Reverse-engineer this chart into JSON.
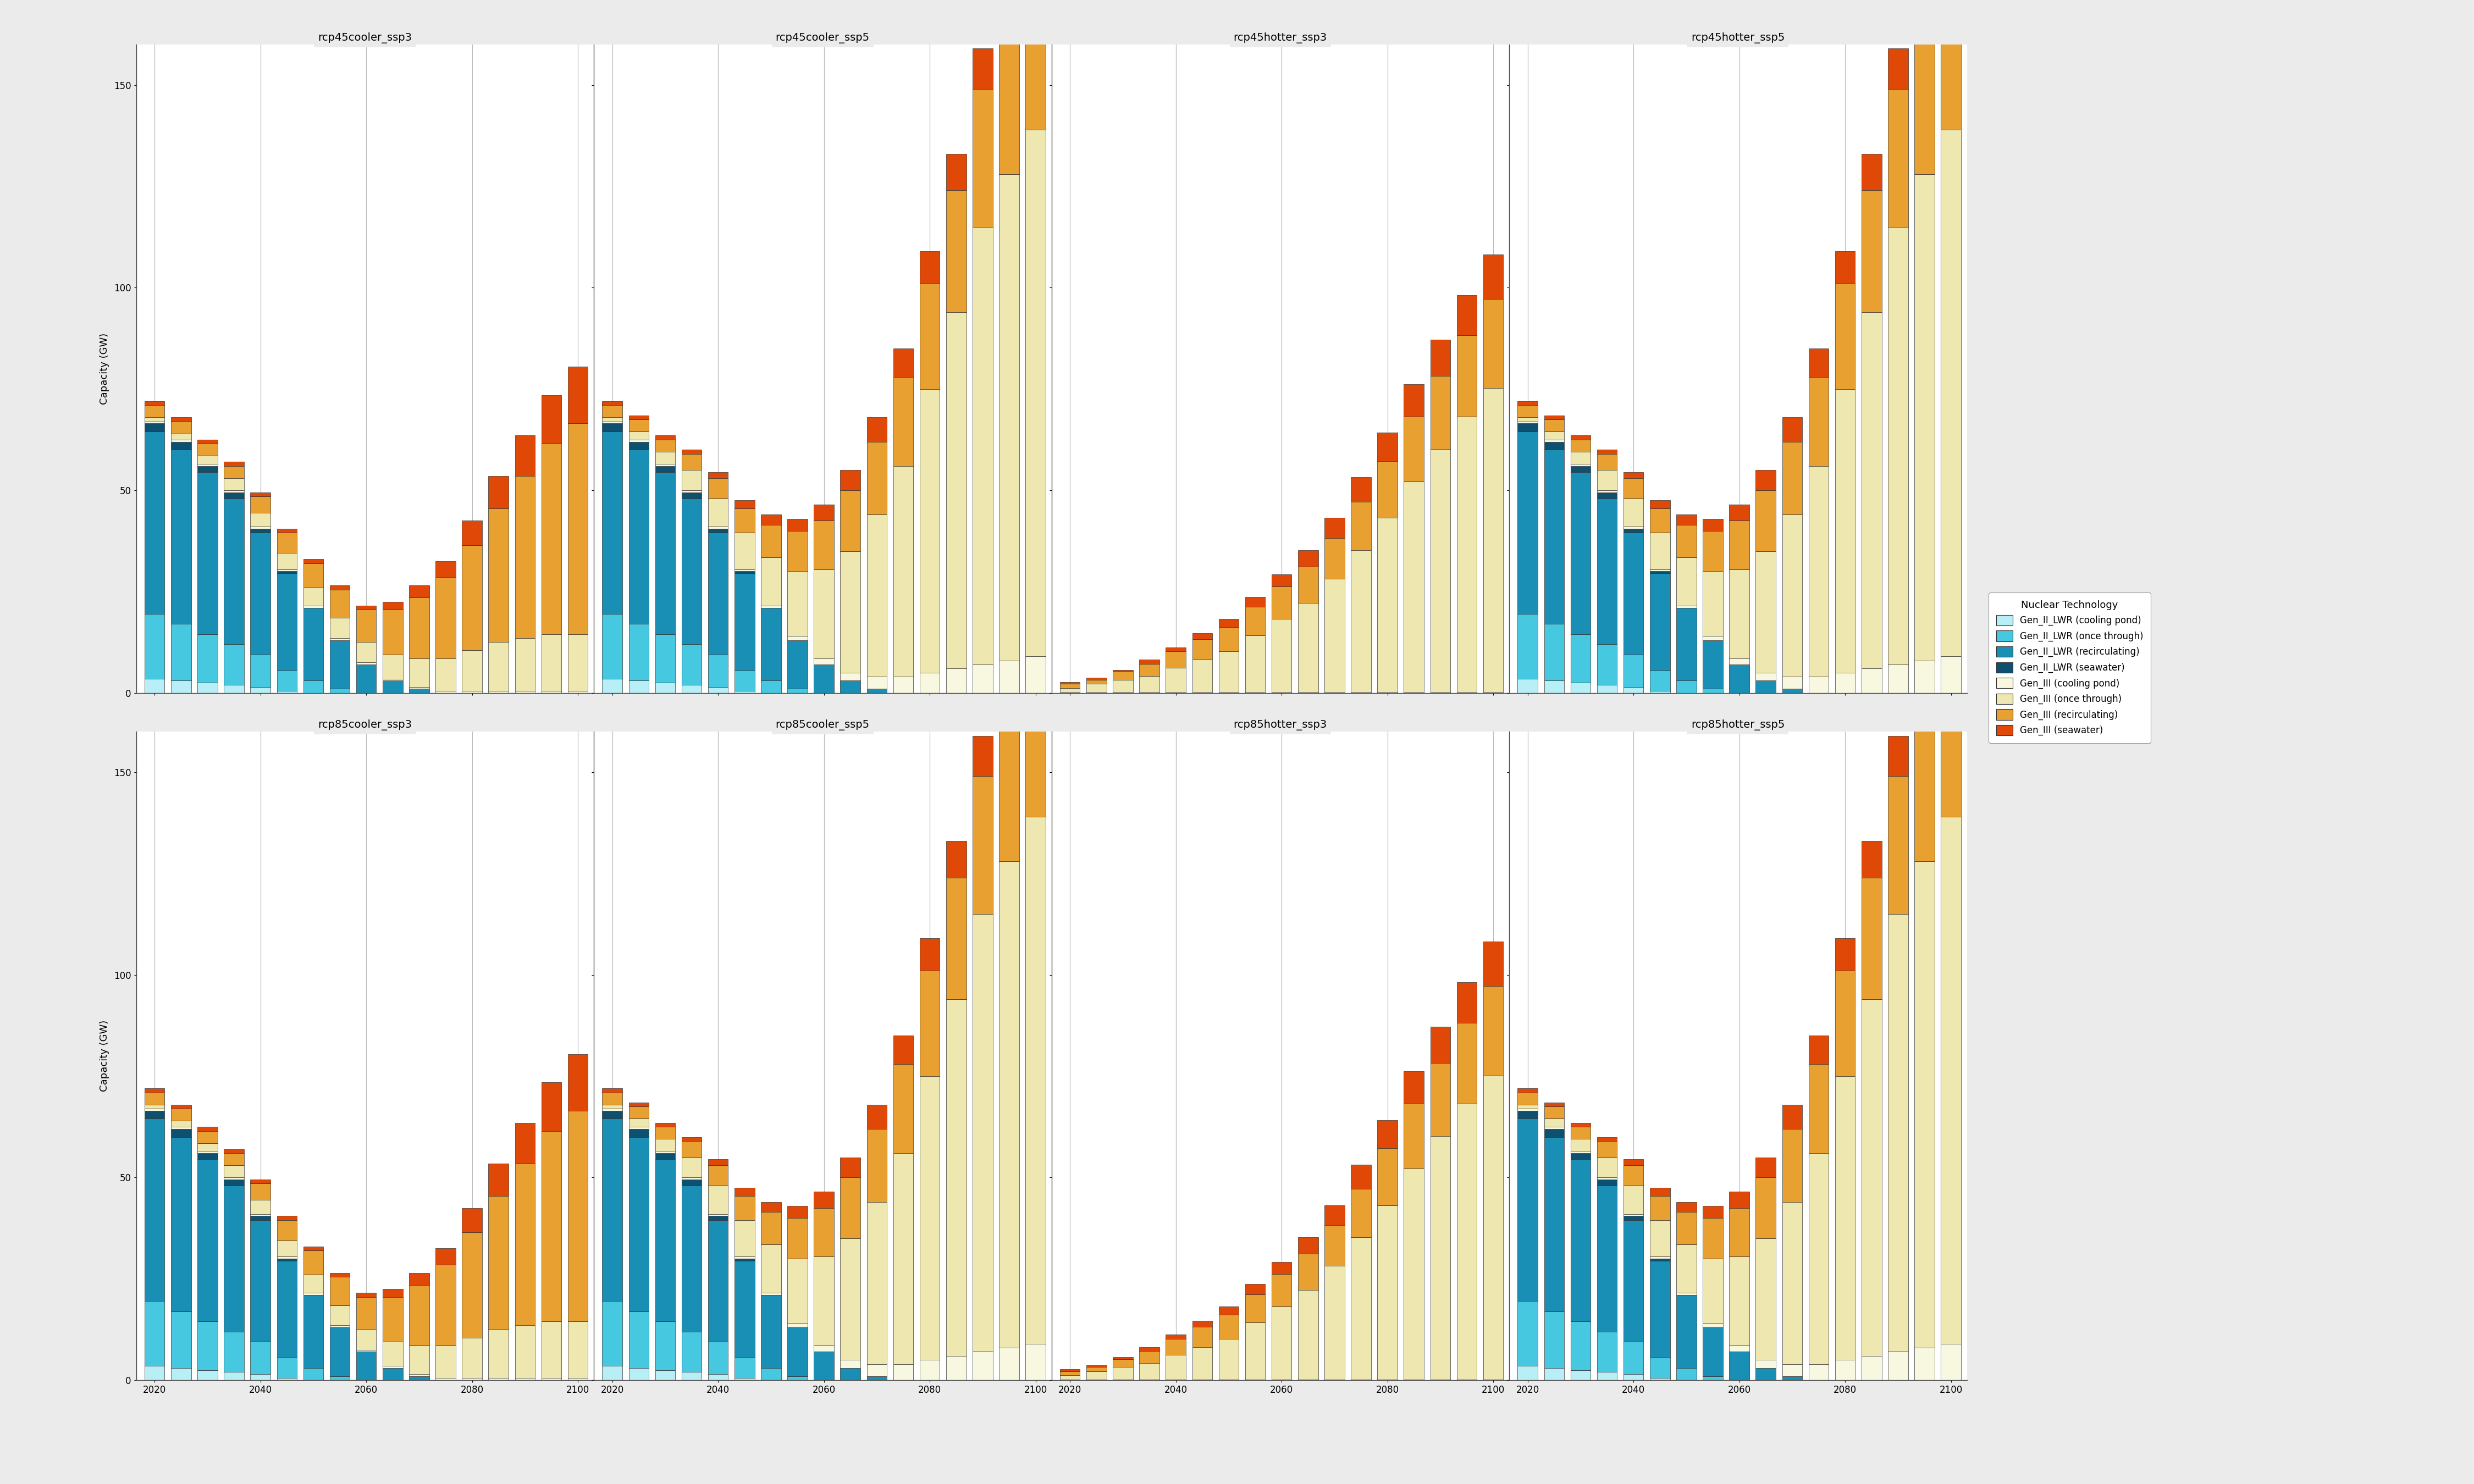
{
  "scenarios": [
    "rcp45cooler_ssp3",
    "rcp45cooler_ssp5",
    "rcp45hotter_ssp3",
    "rcp45hotter_ssp5",
    "rcp85cooler_ssp3",
    "rcp85cooler_ssp5",
    "rcp85hotter_ssp3",
    "rcp85hotter_ssp5"
  ],
  "years": [
    2020,
    2025,
    2030,
    2035,
    2040,
    2045,
    2050,
    2055,
    2060,
    2065,
    2070,
    2075,
    2080,
    2085,
    2090,
    2095,
    2100
  ],
  "technology_labels": [
    "Gen_II_LWR (cooling pond)",
    "Gen_II_LWR (once through)",
    "Gen_II_LWR (recirculating)",
    "Gen_II_LWR (seawater)",
    "Gen_III (cooling pond)",
    "Gen_III (once through)",
    "Gen_III (recirculating)",
    "Gen_III (seawater)"
  ],
  "colors": [
    "#b8eef5",
    "#45c8e0",
    "#1a8fb5",
    "#0d5070",
    "#f8f8e0",
    "#eee8b0",
    "#e8a030",
    "#e04808"
  ],
  "data": {
    "rcp45cooler_ssp3": {
      "gen2_pond": [
        3.5,
        3.0,
        2.5,
        2.0,
        1.5,
        0.5,
        0,
        0,
        0,
        0,
        0,
        0,
        0,
        0,
        0,
        0,
        0
      ],
      "gen2_once": [
        16,
        14,
        12,
        10,
        8,
        5,
        3,
        1,
        0,
        0,
        0,
        0,
        0,
        0,
        0,
        0,
        0
      ],
      "gen2_recirc": [
        45,
        43,
        40,
        36,
        30,
        24,
        18,
        12,
        7,
        3,
        1,
        0,
        0,
        0,
        0,
        0,
        0
      ],
      "gen2_sea": [
        2,
        2,
        1.5,
        1.5,
        1,
        0.5,
        0,
        0,
        0,
        0,
        0,
        0,
        0,
        0,
        0,
        0,
        0
      ],
      "gen3_pond": [
        0.5,
        0.5,
        0.5,
        0.5,
        0.5,
        0.5,
        0.5,
        0.5,
        0.5,
        0.5,
        0.5,
        0.5,
        0.5,
        0.5,
        0.5,
        0.5,
        0.5
      ],
      "gen3_once": [
        1,
        1.5,
        2,
        3,
        3.5,
        4,
        4.5,
        5,
        5,
        6,
        7,
        8,
        10,
        12,
        13,
        14,
        14
      ],
      "gen3_recirc": [
        3,
        3,
        3,
        3,
        4,
        5,
        6,
        7,
        8,
        11,
        15,
        20,
        26,
        33,
        40,
        47,
        52
      ],
      "gen3_sea": [
        1,
        1,
        1,
        1,
        1,
        1,
        1,
        1,
        1,
        2,
        3,
        4,
        6,
        8,
        10,
        12,
        14
      ]
    },
    "rcp45cooler_ssp5": {
      "gen2_pond": [
        3.5,
        3.0,
        2.5,
        2.0,
        1.5,
        0.5,
        0,
        0,
        0,
        0,
        0,
        0,
        0,
        0,
        0,
        0,
        0
      ],
      "gen2_once": [
        16,
        14,
        12,
        10,
        8,
        5,
        3,
        1,
        0,
        0,
        0,
        0,
        0,
        0,
        0,
        0,
        0
      ],
      "gen2_recirc": [
        45,
        43,
        40,
        36,
        30,
        24,
        18,
        12,
        7,
        3,
        1,
        0,
        0,
        0,
        0,
        0,
        0
      ],
      "gen2_sea": [
        2,
        2,
        1.5,
        1.5,
        1,
        0.5,
        0,
        0,
        0,
        0,
        0,
        0,
        0,
        0,
        0,
        0,
        0
      ],
      "gen3_pond": [
        0.5,
        0.5,
        0.5,
        0.5,
        0.5,
        0.5,
        0.5,
        1,
        1.5,
        2,
        3,
        4,
        5,
        6,
        7,
        8,
        9
      ],
      "gen3_once": [
        1,
        2,
        3,
        5,
        7,
        9,
        12,
        16,
        22,
        30,
        40,
        52,
        70,
        88,
        108,
        120,
        130
      ],
      "gen3_recirc": [
        3,
        3,
        3,
        4,
        5,
        6,
        8,
        10,
        12,
        15,
        18,
        22,
        26,
        30,
        34,
        38,
        42
      ],
      "gen3_sea": [
        1,
        1,
        1,
        1,
        1.5,
        2,
        2.5,
        3,
        4,
        5,
        6,
        7,
        8,
        9,
        10,
        11,
        12
      ]
    },
    "rcp45hotter_ssp3": {
      "gen2_pond": [
        0,
        0,
        0,
        0,
        0,
        0,
        0,
        0,
        0,
        0,
        0,
        0,
        0,
        0,
        0,
        0,
        0
      ],
      "gen2_once": [
        0,
        0,
        0,
        0,
        0,
        0,
        0,
        0,
        0,
        0,
        0,
        0,
        0,
        0,
        0,
        0,
        0
      ],
      "gen2_recirc": [
        0,
        0,
        0,
        0,
        0,
        0,
        0,
        0,
        0,
        0,
        0,
        0,
        0,
        0,
        0,
        0,
        0
      ],
      "gen2_sea": [
        0,
        0,
        0,
        0,
        0,
        0,
        0,
        0,
        0,
        0,
        0,
        0,
        0,
        0,
        0,
        0,
        0
      ],
      "gen3_pond": [
        0.2,
        0.2,
        0.2,
        0.2,
        0.2,
        0.2,
        0.2,
        0.2,
        0.2,
        0.2,
        0.2,
        0.2,
        0.2,
        0.2,
        0.2,
        0.2,
        0.2
      ],
      "gen3_once": [
        1,
        2,
        3,
        4,
        6,
        8,
        10,
        14,
        18,
        22,
        28,
        35,
        43,
        52,
        60,
        68,
        75
      ],
      "gen3_recirc": [
        1,
        1,
        2,
        3,
        4,
        5,
        6,
        7,
        8,
        9,
        10,
        12,
        14,
        16,
        18,
        20,
        22
      ],
      "gen3_sea": [
        0.5,
        0.5,
        0.5,
        1,
        1,
        1.5,
        2,
        2.5,
        3,
        4,
        5,
        6,
        7,
        8,
        9,
        10,
        11
      ]
    },
    "rcp45hotter_ssp5": {
      "gen2_pond": [
        3.5,
        3.0,
        2.5,
        2.0,
        1.5,
        0.5,
        0,
        0,
        0,
        0,
        0,
        0,
        0,
        0,
        0,
        0,
        0
      ],
      "gen2_once": [
        16,
        14,
        12,
        10,
        8,
        5,
        3,
        1,
        0,
        0,
        0,
        0,
        0,
        0,
        0,
        0,
        0
      ],
      "gen2_recirc": [
        45,
        43,
        40,
        36,
        30,
        24,
        18,
        12,
        7,
        3,
        1,
        0,
        0,
        0,
        0,
        0,
        0
      ],
      "gen2_sea": [
        2,
        2,
        1.5,
        1.5,
        1,
        0.5,
        0,
        0,
        0,
        0,
        0,
        0,
        0,
        0,
        0,
        0,
        0
      ],
      "gen3_pond": [
        0.5,
        0.5,
        0.5,
        0.5,
        0.5,
        0.5,
        0.5,
        1,
        1.5,
        2,
        3,
        4,
        5,
        6,
        7,
        8,
        9
      ],
      "gen3_once": [
        1,
        2,
        3,
        5,
        7,
        9,
        12,
        16,
        22,
        30,
        40,
        52,
        70,
        88,
        108,
        120,
        130
      ],
      "gen3_recirc": [
        3,
        3,
        3,
        4,
        5,
        6,
        8,
        10,
        12,
        15,
        18,
        22,
        26,
        30,
        34,
        38,
        42
      ],
      "gen3_sea": [
        1,
        1,
        1,
        1,
        1.5,
        2,
        2.5,
        3,
        4,
        5,
        6,
        7,
        8,
        9,
        10,
        11,
        12
      ]
    },
    "rcp85cooler_ssp3": {
      "gen2_pond": [
        3.5,
        3.0,
        2.5,
        2.0,
        1.5,
        0.5,
        0,
        0,
        0,
        0,
        0,
        0,
        0,
        0,
        0,
        0,
        0
      ],
      "gen2_once": [
        16,
        14,
        12,
        10,
        8,
        5,
        3,
        1,
        0,
        0,
        0,
        0,
        0,
        0,
        0,
        0,
        0
      ],
      "gen2_recirc": [
        45,
        43,
        40,
        36,
        30,
        24,
        18,
        12,
        7,
        3,
        1,
        0,
        0,
        0,
        0,
        0,
        0
      ],
      "gen2_sea": [
        2,
        2,
        1.5,
        1.5,
        1,
        0.5,
        0,
        0,
        0,
        0,
        0,
        0,
        0,
        0,
        0,
        0,
        0
      ],
      "gen3_pond": [
        0.5,
        0.5,
        0.5,
        0.5,
        0.5,
        0.5,
        0.5,
        0.5,
        0.5,
        0.5,
        0.5,
        0.5,
        0.5,
        0.5,
        0.5,
        0.5,
        0.5
      ],
      "gen3_once": [
        1,
        1.5,
        2,
        3,
        3.5,
        4,
        4.5,
        5,
        5,
        6,
        7,
        8,
        10,
        12,
        13,
        14,
        14
      ],
      "gen3_recirc": [
        3,
        3,
        3,
        3,
        4,
        5,
        6,
        7,
        8,
        11,
        15,
        20,
        26,
        33,
        40,
        47,
        52
      ],
      "gen3_sea": [
        1,
        1,
        1,
        1,
        1,
        1,
        1,
        1,
        1,
        2,
        3,
        4,
        6,
        8,
        10,
        12,
        14
      ]
    },
    "rcp85cooler_ssp5": {
      "gen2_pond": [
        3.5,
        3.0,
        2.5,
        2.0,
        1.5,
        0.5,
        0,
        0,
        0,
        0,
        0,
        0,
        0,
        0,
        0,
        0,
        0
      ],
      "gen2_once": [
        16,
        14,
        12,
        10,
        8,
        5,
        3,
        1,
        0,
        0,
        0,
        0,
        0,
        0,
        0,
        0,
        0
      ],
      "gen2_recirc": [
        45,
        43,
        40,
        36,
        30,
        24,
        18,
        12,
        7,
        3,
        1,
        0,
        0,
        0,
        0,
        0,
        0
      ],
      "gen2_sea": [
        2,
        2,
        1.5,
        1.5,
        1,
        0.5,
        0,
        0,
        0,
        0,
        0,
        0,
        0,
        0,
        0,
        0,
        0
      ],
      "gen3_pond": [
        0.5,
        0.5,
        0.5,
        0.5,
        0.5,
        0.5,
        0.5,
        1,
        1.5,
        2,
        3,
        4,
        5,
        6,
        7,
        8,
        9
      ],
      "gen3_once": [
        1,
        2,
        3,
        5,
        7,
        9,
        12,
        16,
        22,
        30,
        40,
        52,
        70,
        88,
        108,
        120,
        130
      ],
      "gen3_recirc": [
        3,
        3,
        3,
        4,
        5,
        6,
        8,
        10,
        12,
        15,
        18,
        22,
        26,
        30,
        34,
        38,
        42
      ],
      "gen3_sea": [
        1,
        1,
        1,
        1,
        1.5,
        2,
        2.5,
        3,
        4,
        5,
        6,
        7,
        8,
        9,
        10,
        11,
        12
      ]
    },
    "rcp85hotter_ssp3": {
      "gen2_pond": [
        0,
        0,
        0,
        0,
        0,
        0,
        0,
        0,
        0,
        0,
        0,
        0,
        0,
        0,
        0,
        0,
        0
      ],
      "gen2_once": [
        0,
        0,
        0,
        0,
        0,
        0,
        0,
        0,
        0,
        0,
        0,
        0,
        0,
        0,
        0,
        0,
        0
      ],
      "gen2_recirc": [
        0,
        0,
        0,
        0,
        0,
        0,
        0,
        0,
        0,
        0,
        0,
        0,
        0,
        0,
        0,
        0,
        0
      ],
      "gen2_sea": [
        0,
        0,
        0,
        0,
        0,
        0,
        0,
        0,
        0,
        0,
        0,
        0,
        0,
        0,
        0,
        0,
        0
      ],
      "gen3_pond": [
        0.2,
        0.2,
        0.2,
        0.2,
        0.2,
        0.2,
        0.2,
        0.2,
        0.2,
        0.2,
        0.2,
        0.2,
        0.2,
        0.2,
        0.2,
        0.2,
        0.2
      ],
      "gen3_once": [
        1,
        2,
        3,
        4,
        6,
        8,
        10,
        14,
        18,
        22,
        28,
        35,
        43,
        52,
        60,
        68,
        75
      ],
      "gen3_recirc": [
        1,
        1,
        2,
        3,
        4,
        5,
        6,
        7,
        8,
        9,
        10,
        12,
        14,
        16,
        18,
        20,
        22
      ],
      "gen3_sea": [
        0.5,
        0.5,
        0.5,
        1,
        1,
        1.5,
        2,
        2.5,
        3,
        4,
        5,
        6,
        7,
        8,
        9,
        10,
        11
      ]
    },
    "rcp85hotter_ssp5": {
      "gen2_pond": [
        3.5,
        3.0,
        2.5,
        2.0,
        1.5,
        0.5,
        0,
        0,
        0,
        0,
        0,
        0,
        0,
        0,
        0,
        0,
        0
      ],
      "gen2_once": [
        16,
        14,
        12,
        10,
        8,
        5,
        3,
        1,
        0,
        0,
        0,
        0,
        0,
        0,
        0,
        0,
        0
      ],
      "gen2_recirc": [
        45,
        43,
        40,
        36,
        30,
        24,
        18,
        12,
        7,
        3,
        1,
        0,
        0,
        0,
        0,
        0,
        0
      ],
      "gen2_sea": [
        2,
        2,
        1.5,
        1.5,
        1,
        0.5,
        0,
        0,
        0,
        0,
        0,
        0,
        0,
        0,
        0,
        0,
        0
      ],
      "gen3_pond": [
        0.5,
        0.5,
        0.5,
        0.5,
        0.5,
        0.5,
        0.5,
        1,
        1.5,
        2,
        3,
        4,
        5,
        6,
        7,
        8,
        9
      ],
      "gen3_once": [
        1,
        2,
        3,
        5,
        7,
        9,
        12,
        16,
        22,
        30,
        40,
        52,
        70,
        88,
        108,
        120,
        130
      ],
      "gen3_recirc": [
        3,
        3,
        3,
        4,
        5,
        6,
        8,
        10,
        12,
        15,
        18,
        22,
        26,
        30,
        34,
        38,
        42
      ],
      "gen3_sea": [
        1,
        1,
        1,
        1,
        1.5,
        2,
        2.5,
        3,
        4,
        5,
        6,
        7,
        8,
        9,
        10,
        11,
        12
      ]
    }
  },
  "ylabel": "Capacity (GW)",
  "ylim": [
    0,
    160
  ],
  "yticks": [
    0,
    50,
    100,
    150
  ],
  "fig_background": "#ebebeb",
  "panel_background": "#ffffff",
  "grid_color": "#bbbbbb",
  "spine_color": "#444444",
  "bar_edge_color": "#333333",
  "title_fontsize": 14,
  "label_fontsize": 13,
  "tick_fontsize": 12,
  "legend_title_fontsize": 13,
  "legend_fontsize": 12
}
